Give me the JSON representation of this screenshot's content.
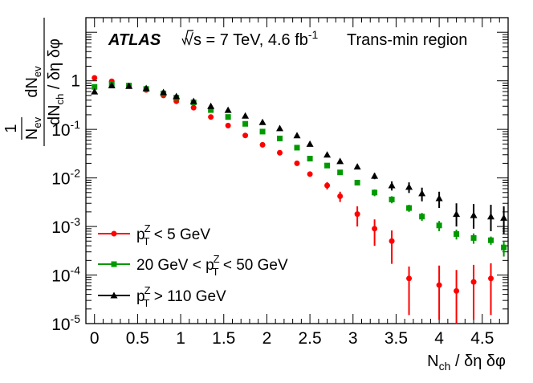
{
  "chart_data": {
    "type": "scatter",
    "title": "",
    "xlabel": "N_ch / δη δφ",
    "ylabel": "1/N_ev dN_ev / dN_ch / δη δφ",
    "xscale": "linear",
    "yscale": "log",
    "xlim": [
      -0.1,
      4.8
    ],
    "ylim": [
      1e-05,
      20
    ],
    "x_ticks": [
      "0",
      "0.5",
      "1",
      "1.5",
      "2",
      "2.5",
      "3",
      "3.5",
      "4",
      "4.5"
    ],
    "annotations": {
      "experiment": "ATLAS",
      "energy": "√s = 7 TeV, 4.6 fb",
      "energy_sup": "-1",
      "region": "Trans-min region"
    },
    "legend_position": "bottom-left",
    "series": [
      {
        "name": "p_T^Z < 5 GeV",
        "legend_parts": {
          "p": "p",
          "sup": "Z",
          "sub": "T",
          "rest": " < 5 GeV"
        },
        "color": "#ff0000",
        "marker": "circle",
        "x": [
          0,
          0.2,
          0.4,
          0.6,
          0.8,
          0.95,
          1.15,
          1.35,
          1.55,
          1.75,
          1.95,
          2.15,
          2.35,
          2.5,
          2.7,
          2.85,
          3.05,
          3.25,
          3.45,
          3.65,
          4.0,
          4.2,
          4.4,
          4.6
        ],
        "y": [
          1.15,
          0.98,
          0.8,
          0.65,
          0.5,
          0.38,
          0.28,
          0.18,
          0.12,
          0.075,
          0.048,
          0.033,
          0.02,
          0.012,
          0.007,
          0.0042,
          0.0018,
          0.0009,
          0.0005,
          8.5e-05,
          6.2e-05,
          4.7e-05,
          7.2e-05,
          8.5e-05
        ],
        "err_low": [
          0,
          0,
          0,
          0,
          0,
          0,
          0,
          0,
          0,
          0,
          0,
          0,
          0,
          0,
          0.0012,
          0.001,
          0.0008,
          0.0005,
          0.00033,
          7e-05,
          5e-05,
          4e-05,
          6e-05,
          7e-05
        ],
        "err_high": [
          0,
          0,
          0,
          0,
          0,
          0,
          0,
          0,
          0,
          0,
          0,
          0,
          0,
          0,
          0.0012,
          0.001,
          0.0008,
          0.0005,
          0.00033,
          6.5e-05,
          9.5e-05,
          8e-05,
          9e-05,
          9e-05
        ]
      },
      {
        "name": "20 GeV < p_T^Z < 50 GeV",
        "legend_parts": {
          "pre": "20 GeV < ",
          "p": "p",
          "sup": "Z",
          "sub": "T",
          "rest": " < 50 GeV"
        },
        "color": "#009900",
        "marker": "square",
        "x": [
          0,
          0.2,
          0.4,
          0.6,
          0.8,
          0.95,
          1.15,
          1.35,
          1.55,
          1.75,
          1.95,
          2.15,
          2.35,
          2.5,
          2.7,
          2.85,
          3.05,
          3.25,
          3.45,
          3.65,
          3.8,
          4.0,
          4.2,
          4.4,
          4.6,
          4.75
        ],
        "y": [
          0.75,
          0.85,
          0.8,
          0.68,
          0.55,
          0.45,
          0.36,
          0.25,
          0.18,
          0.13,
          0.09,
          0.065,
          0.042,
          0.025,
          0.018,
          0.013,
          0.008,
          0.005,
          0.0036,
          0.0024,
          0.0016,
          0.00105,
          0.0007,
          0.00058,
          0.00052,
          0.00037
        ],
        "err_low": [
          0,
          0,
          0,
          0,
          0,
          0,
          0,
          0,
          0,
          0,
          0,
          0,
          0,
          0,
          0,
          0,
          0,
          0.0008,
          0.0006,
          0.0004,
          0.0003,
          0.00025,
          0.00016,
          0.00014,
          0.0001,
          0.00013
        ],
        "err_high": [
          0,
          0,
          0,
          0,
          0,
          0,
          0,
          0,
          0,
          0,
          0,
          0,
          0,
          0,
          0,
          0,
          0,
          0.0008,
          0.0006,
          0.0004,
          0.0003,
          0.00025,
          0.00016,
          0.00014,
          0.0001,
          0.00013
        ]
      },
      {
        "name": "p_T^Z > 110 GeV",
        "legend_parts": {
          "p": "p",
          "sup": "Z",
          "sub": "T",
          "rest": " >  110 GeV"
        },
        "color": "#000000",
        "marker": "triangle",
        "x": [
          0,
          0.2,
          0.4,
          0.6,
          0.8,
          0.95,
          1.15,
          1.35,
          1.55,
          1.75,
          1.95,
          2.15,
          2.35,
          2.5,
          2.7,
          2.85,
          3.05,
          3.25,
          3.45,
          3.65,
          3.8,
          4.0,
          4.2,
          4.4,
          4.6,
          4.75
        ],
        "y": [
          0.6,
          0.8,
          0.78,
          0.7,
          0.58,
          0.48,
          0.38,
          0.3,
          0.25,
          0.19,
          0.14,
          0.105,
          0.075,
          0.05,
          0.03,
          0.022,
          0.017,
          0.011,
          0.007,
          0.0065,
          0.0048,
          0.0038,
          0.0018,
          0.0017,
          0.0016,
          0.0015
        ],
        "err_low": [
          0,
          0,
          0,
          0,
          0,
          0,
          0,
          0,
          0,
          0,
          0,
          0,
          0,
          0,
          0,
          0,
          0,
          0.0016,
          0.0015,
          0.0016,
          0.0015,
          0.0014,
          0.0008,
          0.0008,
          0.0008,
          0.0008
        ],
        "err_high": [
          0,
          0,
          0,
          0,
          0,
          0,
          0,
          0,
          0,
          0,
          0,
          0,
          0,
          0,
          0,
          0,
          0,
          0.0016,
          0.0015,
          0.0016,
          0.0015,
          0.0014,
          0.0012,
          0.0012,
          0.0012,
          0.0011
        ]
      }
    ]
  }
}
